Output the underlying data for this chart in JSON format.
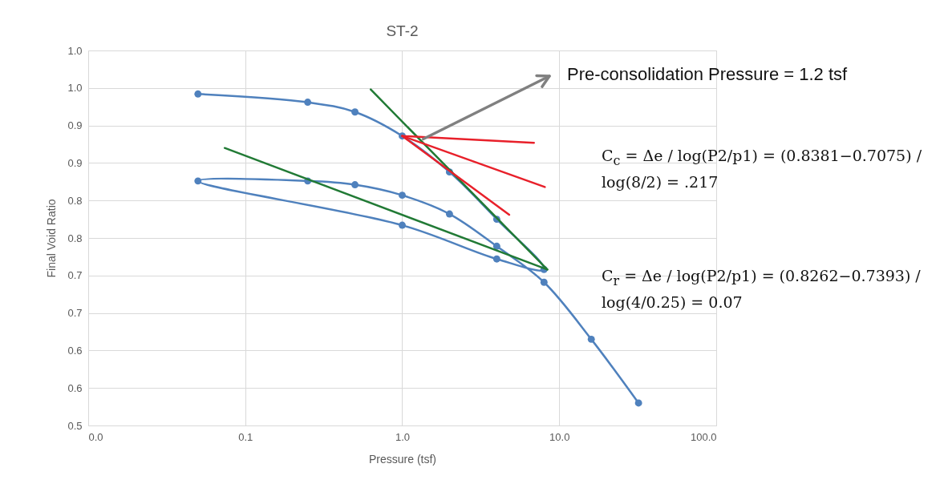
{
  "chart_data": {
    "type": "line",
    "title": "ST-2",
    "xlabel": "Pressure (tsf)",
    "ylabel": "Final Void Ratio",
    "log": "x",
    "grid": true,
    "xlim": [
      0.01,
      100
    ],
    "xticks": [
      {
        "value": 0.01,
        "label": "0.0"
      },
      {
        "value": 0.1,
        "label": "0.1"
      },
      {
        "value": 1,
        "label": "1.0"
      },
      {
        "value": 10,
        "label": "10.0"
      },
      {
        "value": 100,
        "label": "100.0"
      }
    ],
    "ylim": [
      0.5,
      1.0
    ],
    "yticks": [
      {
        "value": 0.5,
        "label": "0.5"
      },
      {
        "value": 0.55,
        "label": "0.6"
      },
      {
        "value": 0.6,
        "label": "0.6"
      },
      {
        "value": 0.65,
        "label": "0.7"
      },
      {
        "value": 0.7,
        "label": "0.7"
      },
      {
        "value": 0.75,
        "label": "0.8"
      },
      {
        "value": 0.8,
        "label": "0.8"
      },
      {
        "value": 0.85,
        "label": "0.9"
      },
      {
        "value": 0.9,
        "label": "0.9"
      },
      {
        "value": 0.95,
        "label": "1.0"
      },
      {
        "value": 1.0,
        "label": "1.0"
      }
    ],
    "series": [
      {
        "marker": "circle",
        "color": "#4f81bd",
        "x": [
          0.05,
          0.25,
          0.5,
          1,
          2,
          4,
          8,
          4,
          1,
          0.05,
          0.25,
          0.5,
          1,
          2,
          4,
          8,
          16,
          32
        ],
        "values": [
          0.942,
          0.931,
          0.918,
          0.886,
          0.838,
          0.775,
          0.708,
          0.722,
          0.767,
          0.826,
          0.826,
          0.821,
          0.807,
          0.782,
          0.739,
          0.691,
          0.615,
          0.53
        ]
      },
      {
        "marker": "none",
        "color": "#217a35",
        "x": [
          0.63,
          8.4
        ],
        "values": [
          0.948,
          0.708
        ]
      },
      {
        "marker": "none",
        "color": "#217a35",
        "x": [
          0.074,
          8.4
        ],
        "values": [
          0.87,
          0.708
        ]
      },
      {
        "marker": "none",
        "color": "#e8202a",
        "x": [
          1,
          6.9
        ],
        "values": [
          0.886,
          0.877
        ]
      },
      {
        "marker": "none",
        "color": "#e8202a",
        "x": [
          1,
          8.1
        ],
        "values": [
          0.886,
          0.818
        ]
      },
      {
        "marker": "none",
        "color": "#e8202a",
        "x": [
          1,
          4.8
        ],
        "values": [
          0.886,
          0.781
        ]
      }
    ],
    "annotations": [
      {
        "text": "Pre-consolidation Pressure = 1.2 tsf",
        "x": 1.36,
        "y": 0.882
      },
      "C$_{c}$ = Δe / log(P2/p1) = (0.8381−0.7075) / log(8/2) = .217",
      "C$_{r}$ = Δe / log(P2/p1) = (0.8262−0.7393) / log(4/0.25) = 0.07"
    ]
  }
}
